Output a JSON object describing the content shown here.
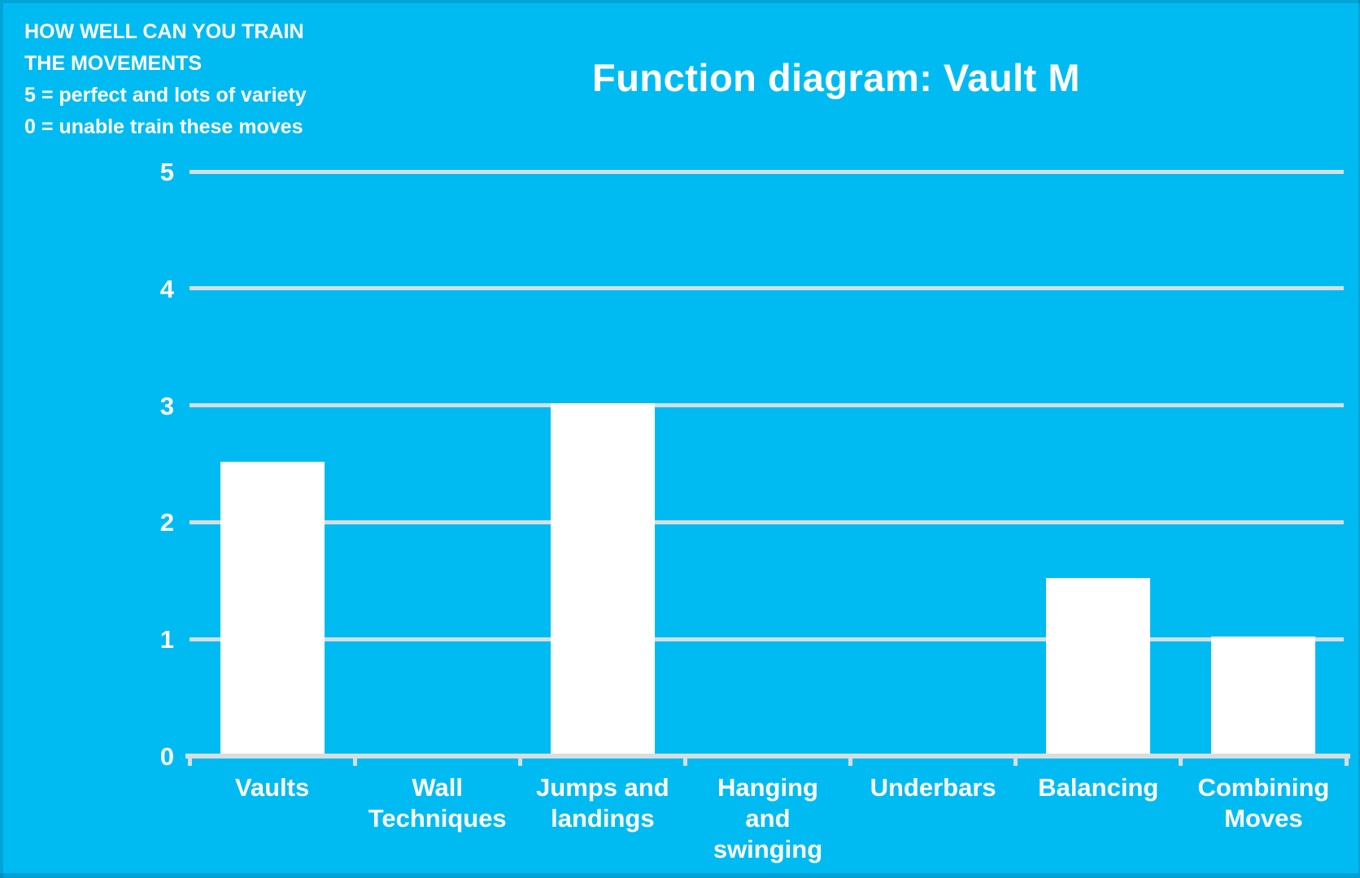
{
  "note": {
    "lines": [
      "HOW WELL CAN YOU TRAIN",
      "THE MOVEMENTS",
      "5 = perfect and lots of variety",
      "0 = unable train these moves"
    ]
  },
  "chart_data": {
    "type": "bar",
    "title": "Function diagram: Vault M",
    "categories": [
      "Vaults",
      "Wall Techniques",
      "Jumps and landings",
      "Hanging and swinging",
      "Underbars",
      "Balancing",
      "Combining Moves"
    ],
    "values": [
      2.5,
      0,
      3,
      0,
      0,
      1.5,
      1
    ],
    "xlabel": "",
    "ylabel": "",
    "ylim": [
      0,
      5
    ],
    "yticks": [
      0,
      1,
      2,
      3,
      4,
      5
    ],
    "grid": true,
    "legend": "none",
    "colors": {
      "background": "#00bbf2",
      "bar": "#ffffff",
      "gridline": "#d6dee1",
      "axis": "#d6dee1",
      "text": "#ffffff"
    }
  }
}
